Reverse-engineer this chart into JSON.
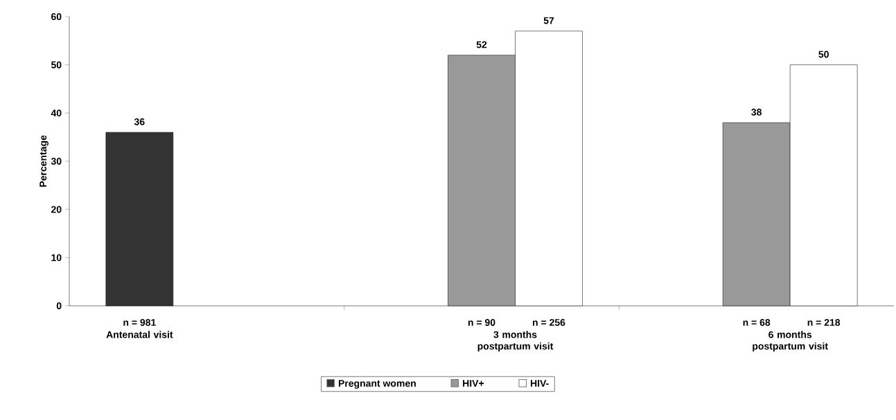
{
  "chart_data": {
    "type": "bar",
    "ylabel": "Percentage",
    "categories": [
      "Antenatal visit",
      "3 months postpartum visit",
      "6 months postpartum visit"
    ],
    "series": [
      {
        "name": "Pregnant women",
        "color": "#333333",
        "values": [
          36,
          null,
          null
        ]
      },
      {
        "name": "HIV+",
        "color": "#999999",
        "values": [
          null,
          52,
          38
        ]
      },
      {
        "name": "HIV-",
        "color": "#ffffff",
        "values": [
          null,
          57,
          50
        ]
      }
    ],
    "ylim": [
      0,
      60
    ],
    "yticks": [
      0,
      10,
      20,
      30,
      40,
      50,
      60
    ],
    "data_labels": true,
    "grid": false,
    "legend": "bottom",
    "annotations": [
      "n = 981",
      "n = 90",
      "n = 256",
      "n = 68",
      "n = 218"
    ]
  }
}
